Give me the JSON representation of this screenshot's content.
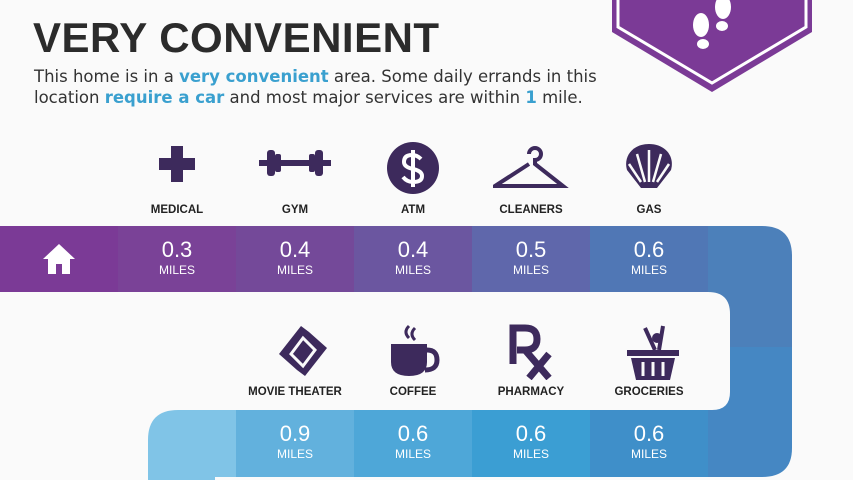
{
  "header": {
    "title": "VERY CONVENIENT",
    "desc": {
      "p1": "This home is in a ",
      "h1": "very convenient",
      "p2": " area. Some daily errands in this location ",
      "h2": "require a car",
      "p3": " and most major services are within ",
      "h3": "1",
      "p4": " mile."
    }
  },
  "badge": {
    "icon": "footprints-icon",
    "color": "#7b3a96"
  },
  "colors": {
    "icon": "#3d2a5c",
    "accent": "#3aa0cf"
  },
  "row1": [
    {
      "label": "MEDICAL",
      "icon": "medical-cross-icon",
      "value": "0.3",
      "unit": "MILES"
    },
    {
      "label": "GYM",
      "icon": "dumbbell-icon",
      "value": "0.4",
      "unit": "MILES"
    },
    {
      "label": "ATM",
      "icon": "dollar-icon",
      "value": "0.4",
      "unit": "MILES"
    },
    {
      "label": "CLEANERS",
      "icon": "hanger-icon",
      "value": "0.5",
      "unit": "MILES"
    },
    {
      "label": "GAS",
      "icon": "shell-icon",
      "value": "0.6",
      "unit": "MILES"
    }
  ],
  "row2": [
    {
      "label": "MOVIE THEATER",
      "icon": "ticket-icon",
      "value": "0.9",
      "unit": "MILES"
    },
    {
      "label": "COFFEE",
      "icon": "coffee-cup-icon",
      "value": "0.6",
      "unit": "MILES"
    },
    {
      "label": "PHARMACY",
      "icon": "rx-icon",
      "value": "0.6",
      "unit": "MILES"
    },
    {
      "label": "GROCERIES",
      "icon": "basket-icon",
      "value": "0.6",
      "unit": "MILES"
    }
  ],
  "home_icon": "home-icon"
}
